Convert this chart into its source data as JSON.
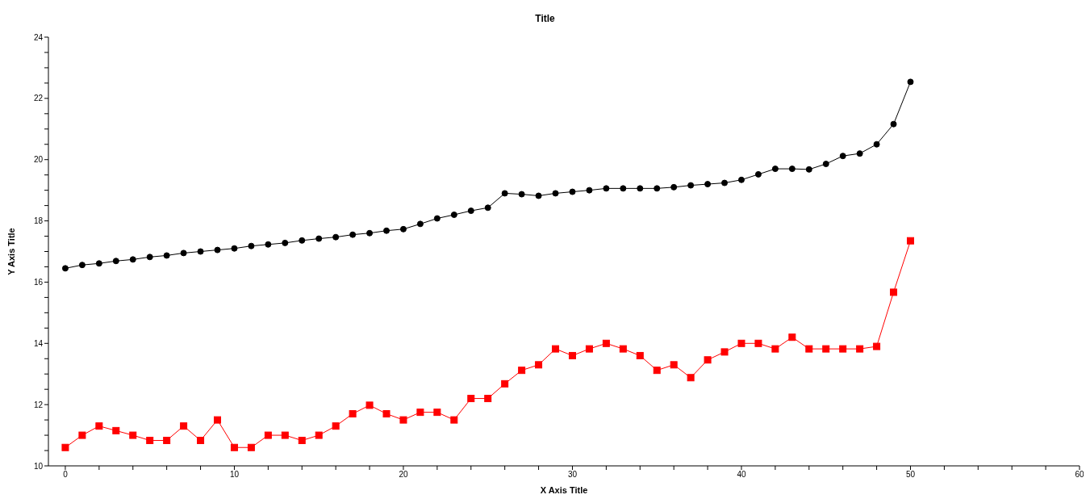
{
  "chart_data": {
    "type": "line",
    "title": "Title",
    "xlabel": "X Axis Title",
    "ylabel": "Y Axis Title",
    "x": [
      0,
      1,
      2,
      3,
      4,
      5,
      6,
      7,
      8,
      9,
      10,
      11,
      12,
      13,
      14,
      15,
      16,
      17,
      18,
      19,
      20,
      21,
      22,
      23,
      24,
      25,
      26,
      27,
      28,
      29,
      30,
      31,
      32,
      33,
      34,
      35,
      36,
      37,
      38,
      39,
      40,
      41,
      42,
      43,
      44,
      45,
      46,
      47,
      48,
      49,
      50
    ],
    "series": [
      {
        "color": "#000000",
        "marker": "circle",
        "values": [
          16.45,
          16.56,
          16.61,
          16.69,
          16.74,
          16.82,
          16.87,
          16.95,
          17.0,
          17.05,
          17.1,
          17.18,
          17.23,
          17.28,
          17.36,
          17.42,
          17.47,
          17.55,
          17.6,
          17.68,
          17.73,
          17.9,
          18.08,
          18.2,
          18.33,
          18.43,
          18.9,
          18.87,
          18.82,
          18.9,
          18.95,
          19.0,
          19.06,
          19.06,
          19.06,
          19.06,
          19.1,
          19.16,
          19.2,
          19.24,
          19.34,
          19.52,
          19.7,
          19.7,
          19.68,
          19.86,
          20.12,
          20.2,
          20.5,
          21.16,
          22.54
        ]
      },
      {
        "color": "#ff0000",
        "marker": "square",
        "values": [
          10.6,
          11.0,
          11.3,
          11.15,
          11.0,
          10.83,
          10.83,
          11.3,
          10.83,
          11.5,
          10.6,
          10.6,
          11.0,
          11.0,
          10.83,
          11.0,
          11.3,
          11.7,
          11.98,
          11.7,
          11.5,
          11.75,
          11.75,
          11.5,
          12.2,
          12.2,
          12.68,
          13.12,
          13.3,
          13.82,
          13.6,
          13.82,
          14.0,
          13.82,
          13.6,
          13.12,
          13.3,
          12.88,
          13.46,
          13.72,
          14.0,
          14.0,
          13.82,
          14.2,
          13.82,
          13.82,
          13.82,
          13.82,
          13.9,
          15.67,
          17.35
        ]
      }
    ],
    "xlim": [
      -1,
      60
    ],
    "xticks": [
      0,
      {
        "value": 2,
        "label": null
      },
      {
        "value": 4,
        "label": null
      },
      {
        "value": 6,
        "label": null
      },
      {
        "value": 8,
        "label": null
      },
      10,
      {
        "value": 12,
        "label": null
      },
      {
        "value": 14,
        "label": null
      },
      {
        "value": 16,
        "label": null
      },
      {
        "value": 18,
        "label": null
      },
      20,
      {
        "value": 22,
        "label": null
      },
      {
        "value": 24,
        "label": null
      },
      {
        "value": 26,
        "label": null
      },
      {
        "value": 28,
        "label": null
      },
      30,
      {
        "value": 32,
        "label": null
      },
      {
        "value": 34,
        "label": null
      },
      {
        "value": 36,
        "label": null
      },
      {
        "value": 38,
        "label": null
      },
      40,
      {
        "value": 42,
        "label": null
      },
      {
        "value": 44,
        "label": null
      },
      {
        "value": 46,
        "label": null
      },
      {
        "value": 48,
        "label": null
      },
      50,
      {
        "value": 52,
        "label": null
      },
      {
        "value": 54,
        "label": null
      },
      {
        "value": 56,
        "label": null
      },
      {
        "value": 58,
        "label": null
      },
      60
    ],
    "ylim": [
      10,
      24
    ],
    "yticks": [
      10,
      {
        "value": 10.5,
        "label": null
      },
      {
        "value": 11,
        "label": null
      },
      {
        "value": 11.5,
        "label": null
      },
      12,
      {
        "value": 12.5,
        "label": null
      },
      {
        "value": 13,
        "label": null
      },
      {
        "value": 13.5,
        "label": null
      },
      14,
      {
        "value": 14.5,
        "label": null
      },
      {
        "value": 15,
        "label": null
      },
      {
        "value": 15.5,
        "label": null
      },
      16,
      {
        "value": 16.5,
        "label": null
      },
      {
        "value": 17,
        "label": null
      },
      {
        "value": 17.5,
        "label": null
      },
      18,
      {
        "value": 18.5,
        "label": null
      },
      {
        "value": 19,
        "label": null
      },
      {
        "value": 19.5,
        "label": null
      },
      20,
      {
        "value": 20.5,
        "label": null
      },
      {
        "value": 21,
        "label": null
      },
      {
        "value": 21.5,
        "label": null
      },
      22,
      {
        "value": 22.5,
        "label": null
      },
      {
        "value": 23,
        "label": null
      },
      {
        "value": 23.5,
        "label": null
      },
      24
    ],
    "grid": false,
    "legend": false
  }
}
